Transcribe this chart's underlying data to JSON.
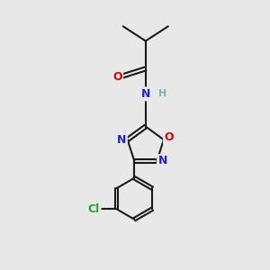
{
  "background_color": "#e8e8e8",
  "bond_color": "#1a1a1a",
  "atom_colors": {
    "O": "#dd0000",
    "N": "#2222cc",
    "Cl": "#22aa22",
    "C": "#1a1a1a",
    "H": "#7ab0b0"
  },
  "figsize": [
    3.0,
    3.0
  ],
  "dpi": 100
}
